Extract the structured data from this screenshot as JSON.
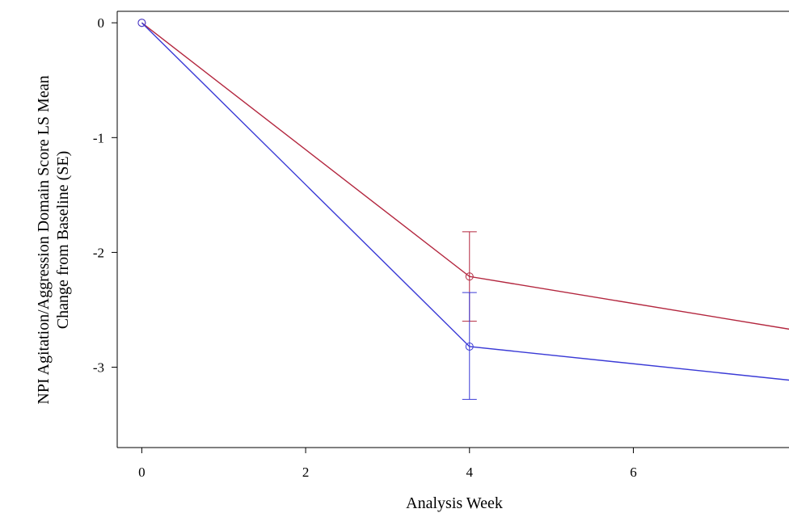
{
  "chart_data": {
    "type": "line",
    "title": "",
    "xlabel": "Analysis Week",
    "ylabel_lines": [
      "NPI Agitation/Aggression Domain Score LS Mean",
      "Change from Baseline (SE)"
    ],
    "xlim": [
      -0.3,
      7.9
    ],
    "ylim": [
      -3.7,
      0.1
    ],
    "x_ticks": [
      0,
      2,
      4,
      6
    ],
    "x_tick_labels": [
      "0",
      "2",
      "4",
      "6"
    ],
    "y_ticks": [
      0,
      -1,
      -2,
      -3
    ],
    "y_tick_labels": [
      "0",
      "-1",
      "-2",
      "-3"
    ],
    "grid": false,
    "legend": "none",
    "series": [
      {
        "color": "#b3263e",
        "x": [
          0,
          4,
          8
        ],
        "values": [
          0,
          -2.21,
          -2.68
        ],
        "error": [
          [
            0,
            0
          ],
          [
            -2.6,
            -1.82
          ],
          null
        ]
      },
      {
        "color": "#3a3ad6",
        "x": [
          0,
          4,
          8
        ],
        "values": [
          0,
          -2.82,
          -3.12
        ],
        "error": [
          [
            0,
            0
          ],
          [
            -3.28,
            -2.35
          ],
          null
        ]
      }
    ]
  }
}
